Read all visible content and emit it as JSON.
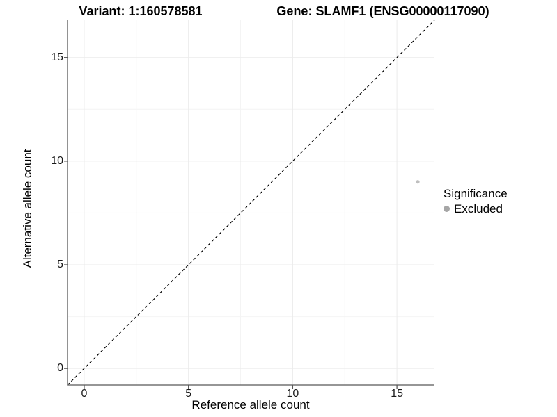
{
  "chart_data": {
    "type": "scatter",
    "title_left": "Variant: 1:160578581",
    "title_right": "Gene: SLAMF1 (ENSG00000117090)",
    "xlabel": "Reference allele count",
    "ylabel": "Alternative allele count",
    "xlim": [
      -0.8,
      16.8
    ],
    "ylim": [
      -0.8,
      16.8
    ],
    "x_ticks": [
      0,
      5,
      10,
      15
    ],
    "y_ticks": [
      0,
      5,
      10,
      15
    ],
    "x_tick_labels": [
      "0",
      "5",
      "10",
      "15"
    ],
    "y_tick_labels": [
      "0",
      "5",
      "10",
      "15"
    ],
    "x_minor_ticks": [
      2.5,
      7.5,
      12.5
    ],
    "y_minor_ticks": [
      2.5,
      7.5,
      12.5
    ],
    "grid": "major+minor, light gray, on white panel",
    "points": [
      {
        "x": 16,
        "y": 9,
        "series": "Excluded"
      }
    ],
    "identity_line": {
      "equation": "y = x",
      "style": "dashed",
      "color": "#000000"
    },
    "legend": {
      "position": "right",
      "title": "Significance",
      "entries": [
        {
          "label": "Excluded",
          "color": "#a6a6a6"
        }
      ]
    },
    "colors": {
      "point": "#bfbfbf",
      "axis_line": "#585858",
      "grid_major": "#ebebeb",
      "grid_minor": "#f4f4f4",
      "tick_text": "#1a1a1a",
      "text": "#000000",
      "background": "#ffffff"
    }
  }
}
